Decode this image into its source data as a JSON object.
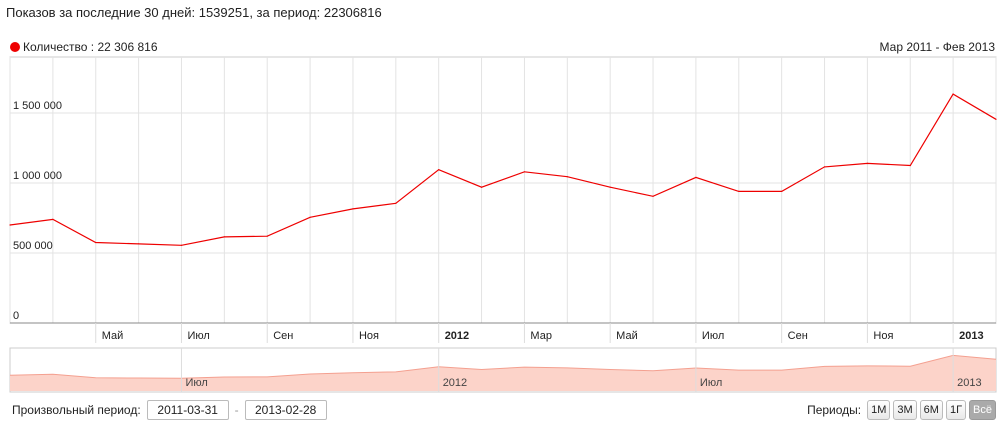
{
  "header": {
    "title": "Показов за последние 30 дней: 1539251, за период: 22306816"
  },
  "legend": {
    "label": "Количество : 22 306 816",
    "color": "#ee0000"
  },
  "range_label": "Мар 2011 - Фев 2013",
  "controls": {
    "custom_period_label": "Произвольный период:",
    "date_from": "2011-03-31",
    "date_to": "2013-02-28",
    "separator": "-",
    "periods_label": "Периоды:",
    "period_buttons": [
      "1М",
      "3М",
      "6М",
      "1Г",
      "Всё"
    ],
    "active_period": "Всё"
  },
  "chart_data": {
    "type": "line",
    "x": [
      "2011-03",
      "2011-04",
      "2011-05",
      "2011-06",
      "2011-07",
      "2011-08",
      "2011-09",
      "2011-10",
      "2011-11",
      "2011-12",
      "2012-01",
      "2012-02",
      "2012-03",
      "2012-04",
      "2012-05",
      "2012-06",
      "2012-07",
      "2012-08",
      "2012-09",
      "2012-10",
      "2012-11",
      "2012-12",
      "2013-01",
      "2013-02"
    ],
    "series": [
      {
        "values": [
          700000,
          740000,
          575000,
          565000,
          555000,
          615000,
          620000,
          755000,
          815000,
          855000,
          1095000,
          970000,
          1080000,
          1045000,
          970000,
          905000,
          1040000,
          940000,
          940000,
          1115000,
          1140000,
          1125000,
          1635000,
          1455000
        ],
        "color": "#ee0000"
      }
    ],
    "ylim": [
      0,
      1900000
    ],
    "y_ticks": [
      0,
      500000,
      1000000,
      1500000
    ],
    "y_tick_labels": [
      "0",
      "500 000",
      "1 000 000",
      "1 500 000"
    ],
    "x_tick_labels": [
      "Май",
      "Июл",
      "Сен",
      "Ноя",
      "2012",
      "Мар",
      "Май",
      "Июл",
      "Сен",
      "Ноя",
      "2013"
    ],
    "x_tick_positions": [
      "2011-05",
      "2011-07",
      "2011-09",
      "2011-11",
      "2012-01",
      "2012-03",
      "2012-05",
      "2012-07",
      "2012-09",
      "2012-11",
      "2013-01"
    ],
    "x_tick_bold": [
      false,
      false,
      false,
      false,
      true,
      false,
      false,
      false,
      false,
      false,
      true
    ],
    "grid": true,
    "legend_position": "top-left",
    "navigator_labels": [
      "Июл",
      "2012",
      "Июл",
      "2013"
    ],
    "navigator_label_positions": [
      "2011-07",
      "2012-01",
      "2012-07",
      "2013-01"
    ],
    "navigator_fill": "#fcd3c9",
    "navigator_line": "#f4a090"
  }
}
